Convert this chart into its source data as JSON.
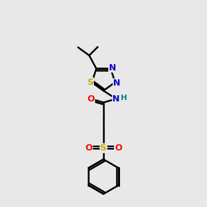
{
  "bg_color": "#e8e8e8",
  "bond_color": "#000000",
  "line_width": 1.8,
  "N_color": "#0000cc",
  "S_color": "#ccaa00",
  "O_color": "#ff0000",
  "H_color": "#008080",
  "C_color": "#000000",
  "xlim": [
    2.5,
    7.5
  ],
  "ylim": [
    0.5,
    10.5
  ]
}
